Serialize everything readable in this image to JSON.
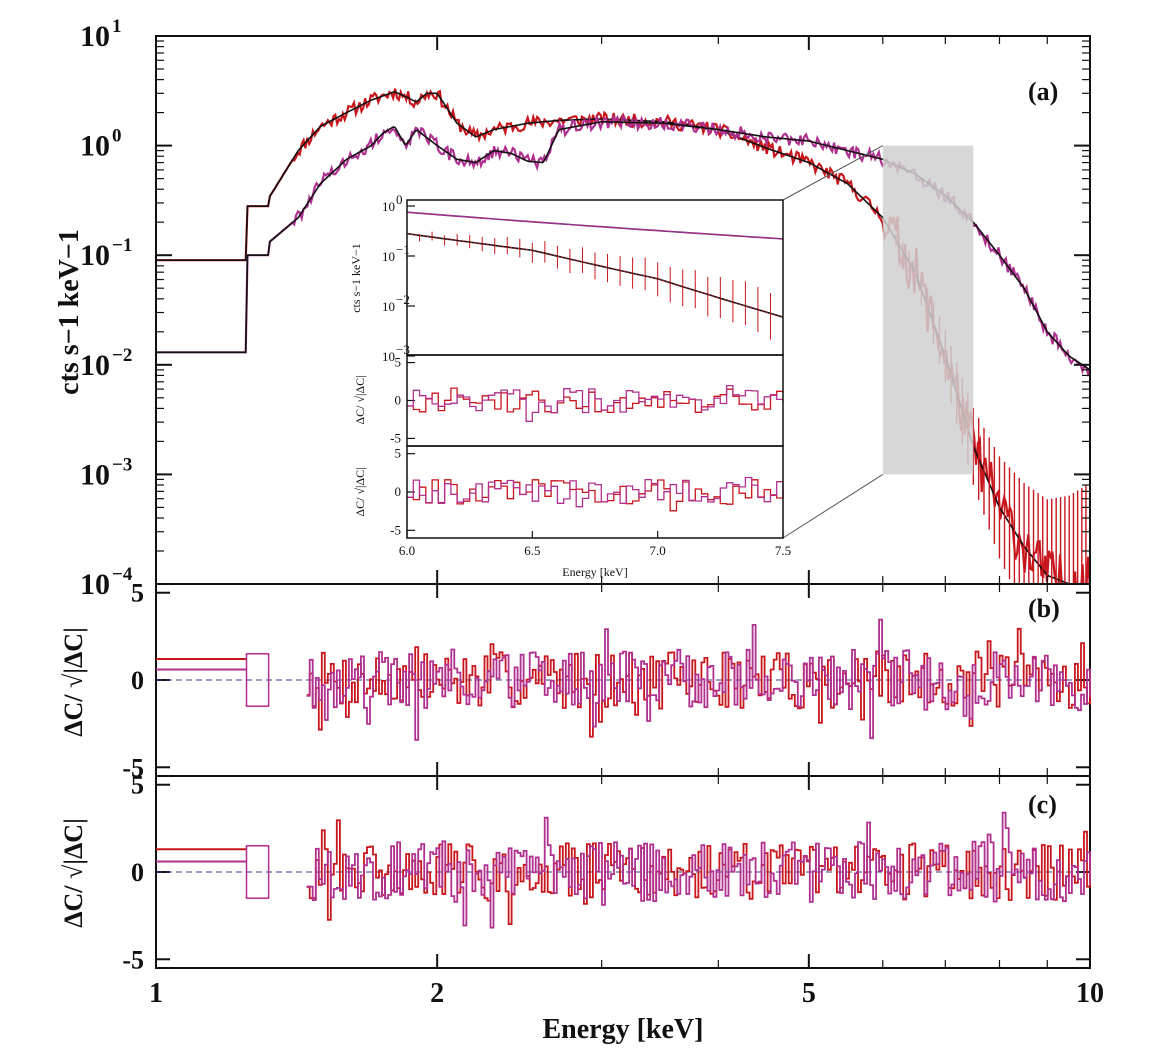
{
  "chart_data": [
    {
      "type": "line",
      "panel": "(a)",
      "xscale": "log",
      "yscale": "log",
      "xlim": [
        1,
        10
      ],
      "ylim": [
        0.0001,
        10
      ],
      "xticks": [
        1,
        2,
        5,
        10
      ],
      "xtick_labels": [
        "1",
        "2",
        "5",
        "10"
      ],
      "ylabel": "cts s−1 keV−1",
      "ytick_labels": [
        "10",
        "10",
        "10",
        "10",
        "10",
        "10"
      ],
      "ytick_exponents": [
        "1",
        "0",
        "−1",
        "−2",
        "−3",
        "−4"
      ],
      "yticks": [
        10,
        1,
        0.1,
        0.01,
        0.001,
        0.0001
      ],
      "series": [
        {
          "color": "#c8161d",
          "x": [
            1.0,
            1.25,
            1.25,
            1.32,
            1.32,
            1.42,
            1.5,
            1.6,
            1.7,
            1.8,
            1.85,
            1.9,
            1.95,
            2.0,
            2.1,
            2.2,
            2.3,
            2.5,
            2.7,
            3.0,
            3.5,
            4.0,
            4.5,
            5.0,
            5.5,
            6.0,
            6.5,
            7.0,
            7.5,
            8.0,
            8.5,
            9.0,
            9.5,
            10.0
          ],
          "y": [
            0.09,
            0.09,
            0.28,
            0.28,
            0.33,
            0.9,
            1.5,
            2.0,
            2.6,
            3.1,
            2.8,
            2.5,
            3.0,
            3.0,
            1.6,
            1.2,
            1.4,
            1.6,
            1.7,
            1.75,
            1.65,
            1.4,
            0.95,
            0.7,
            0.45,
            0.22,
            0.07,
            0.012,
            0.0018,
            0.0005,
            0.00022,
            0.00012,
            0.0001,
            0.0001
          ]
        },
        {
          "color": "#b03090",
          "x": [
            1.0,
            1.25,
            1.25,
            1.32,
            1.32,
            1.42,
            1.5,
            1.6,
            1.7,
            1.75,
            1.8,
            1.85,
            1.9,
            2.0,
            2.1,
            2.2,
            2.3,
            2.4,
            2.5,
            2.6,
            2.7,
            3.0,
            3.5,
            4.0,
            4.5,
            5.0,
            5.5,
            6.0,
            6.5,
            7.0,
            7.5,
            8.0,
            8.5,
            9.0,
            9.5,
            10.0
          ],
          "y": [
            0.013,
            0.013,
            0.1,
            0.1,
            0.13,
            0.22,
            0.45,
            0.75,
            1.0,
            1.3,
            1.5,
            1.0,
            1.4,
            1.0,
            0.75,
            0.7,
            0.9,
            0.85,
            0.72,
            0.7,
            1.4,
            1.65,
            1.6,
            1.4,
            1.2,
            1.1,
            0.9,
            0.75,
            0.55,
            0.35,
            0.2,
            0.1,
            0.05,
            0.02,
            0.012,
            0.009
          ]
        }
      ]
    },
    {
      "type": "line",
      "panel": "(b)",
      "xscale": "log",
      "xlim": [
        1,
        10
      ],
      "ylim": [
        -5.5,
        5.5
      ],
      "yticks": [
        5,
        0,
        -5
      ],
      "ytick_labels": [
        "5",
        "0",
        "-5"
      ],
      "ylabel": "ΔC/ √|ΔC|",
      "series": [
        {
          "color": "#c8161d",
          "seed": 7,
          "x_range": [
            1.45,
            10
          ],
          "n": 260,
          "amplitude": 3.0
        },
        {
          "color": "#b03090",
          "seed": 19,
          "x_range": [
            1.45,
            10
          ],
          "n": 260,
          "amplitude": 3.2
        }
      ],
      "steps": [
        {
          "color": "#c8161d",
          "x": [
            1.0,
            1.25
          ],
          "y": 1.2
        },
        {
          "color": "#b03090",
          "x": [
            1.0,
            1.25
          ],
          "y": 0.6
        }
      ]
    },
    {
      "type": "line",
      "panel": "(c)",
      "xscale": "log",
      "xlim": [
        1,
        10
      ],
      "ylim": [
        -5.5,
        5.5
      ],
      "yticks": [
        5,
        0,
        -5
      ],
      "ytick_labels": [
        "5",
        "0",
        "-5"
      ],
      "ylabel": "ΔC/ √|ΔC|",
      "xlabel": "Energy [keV]",
      "series": [
        {
          "color": "#c8161d",
          "seed": 31,
          "x_range": [
            1.45,
            10
          ],
          "n": 260,
          "amplitude": 3.0
        },
        {
          "color": "#b03090",
          "seed": 43,
          "x_range": [
            1.45,
            10
          ],
          "n": 260,
          "amplitude": 3.2
        }
      ],
      "steps": [
        {
          "color": "#c8161d",
          "x": [
            1.0,
            1.25
          ],
          "y": 1.3
        },
        {
          "color": "#b03090",
          "x": [
            1.0,
            1.25
          ],
          "y": 0.6
        }
      ]
    },
    {
      "type": "line",
      "panel": "inset",
      "xlim": [
        6.0,
        7.5
      ],
      "xticks": [
        6.0,
        6.5,
        7.0,
        7.5
      ],
      "xtick_labels": [
        "6.0",
        "6.5",
        "7.0",
        "7.5"
      ],
      "xlabel": "Energy [keV]",
      "ylabel_top": "cts s−1 keV−1",
      "ylabel_resid": "ΔC/ √|ΔC|",
      "top_ytick_labels": [
        "10",
        "10",
        "10",
        "10"
      ],
      "top_ytick_exponents": [
        "0",
        "−1",
        "−2",
        "−3"
      ],
      "resid_ytick_labels": [
        "5",
        "0",
        "-5"
      ],
      "series": [
        {
          "color": "#b03090",
          "x": [
            6.0,
            7.5
          ],
          "y": [
            0.75,
            0.22
          ]
        },
        {
          "color": "#c8161d",
          "x": [
            6.0,
            6.5,
            7.0,
            7.5
          ],
          "y": [
            0.28,
            0.13,
            0.035,
            0.006
          ]
        }
      ]
    }
  ],
  "colors": {
    "red": "#c8161d",
    "magenta": "#b03090",
    "model": "#111111",
    "highlight": "#d0d0d0"
  }
}
